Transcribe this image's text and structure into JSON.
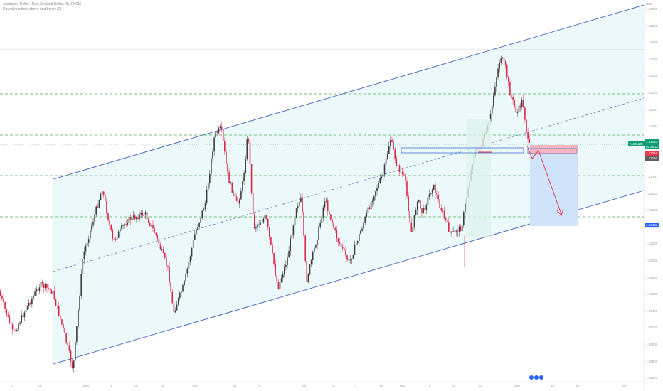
{
  "header": {
    "title": "Australian Dollar / New Zealand Dollar, 4h, FXCM",
    "subtitle": "Round numbers above and below (2)"
  },
  "currency": "NZD",
  "price_axis": {
    "labels": [
      "1.13000",
      "1.12800",
      "1.12600",
      "1.12400",
      "1.12200",
      "1.12000",
      "1.11800",
      "1.11600",
      "1.11400",
      "1.11200",
      "1.11000",
      "1.10800",
      "1.10600",
      "1.10400",
      "1.10200",
      "1.10000",
      "1.09800",
      "1.09600",
      "1.09400",
      "1.09200",
      "1.09000",
      "1.08800",
      "1.08600"
    ]
  },
  "time_axis": {
    "labels": [
      "17",
      "18",
      "May",
      "8",
      "15",
      "22",
      "Jun",
      "12",
      "19",
      "Jul",
      "10",
      "17",
      "24",
      "Aug",
      "8",
      "15",
      "22",
      "Sep",
      "12",
      "19",
      "Oct"
    ]
  },
  "tags": {
    "symbol": "AUDNZD",
    "last_price": "1.11393",
    "countdown": "03:58:11",
    "stop_level": "1.11364",
    "entry_level": "1.11266",
    "target_level": "1.10403"
  },
  "colors": {
    "channel_fill": "#e9f8fa",
    "channel_line": "#3f5fb8",
    "support_dash": "#4caf50",
    "candle_up": "#3c3c3c",
    "candle_down": "#e0254a",
    "target_fill": "#cfe3fa",
    "stop_fill": "#f3b6c0",
    "arrow": "#e53950",
    "price_tag": "#0f9d76",
    "stop_tag": "#e53950",
    "entry_tag": "#5d5d5d",
    "target_tag": "#2962ff"
  },
  "icons": {
    "watermark": "tradingview-logo-icon"
  }
}
